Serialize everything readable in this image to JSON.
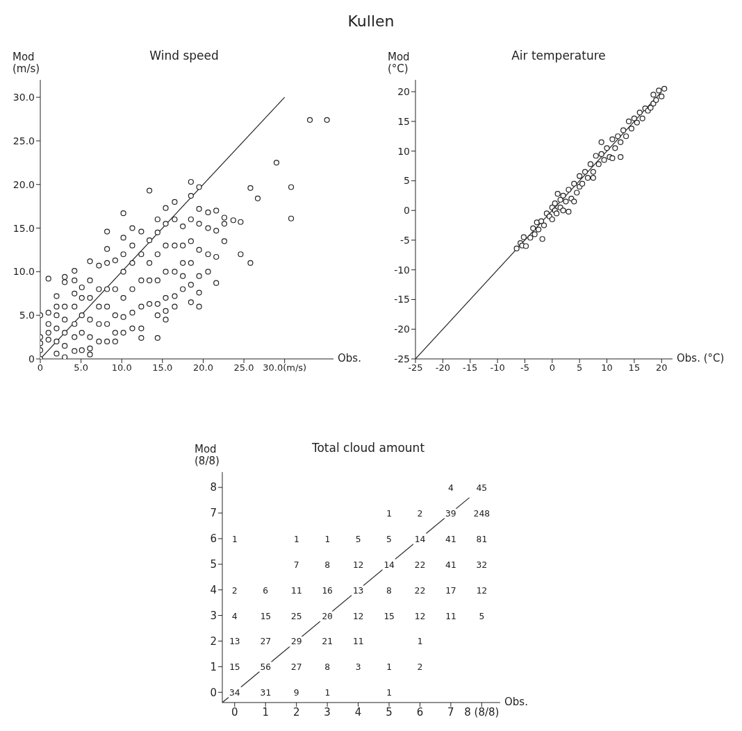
{
  "chart_data": [
    {
      "type": "scatter",
      "annotations": [
        "Kullen"
      ],
      "title": "Wind speed",
      "xlabel": "Obs.",
      "ylabel": "Mod (m/s)",
      "xlim": [
        0,
        36
      ],
      "xticks": [
        0,
        {
          "value": 5,
          "label": "5.0"
        },
        {
          "value": 10,
          "label": "10.0"
        },
        {
          "value": 15,
          "label": "15.0"
        },
        {
          "value": 20,
          "label": "20.0"
        },
        {
          "value": 25,
          "label": "25.0"
        },
        {
          "value": 30,
          "label": "30.0(m/s)"
        }
      ],
      "ylim": [
        0,
        32
      ],
      "yticks": [
        0,
        {
          "value": 5,
          "label": "5.0"
        },
        {
          "value": 10,
          "label": "10.0"
        },
        {
          "value": 15,
          "label": "15.0"
        },
        {
          "value": 20,
          "label": "20.0"
        },
        {
          "value": 25,
          "label": "25.0"
        },
        {
          "value": 30,
          "label": "30.0"
        }
      ],
      "series": [
        {
          "type": "scatter",
          "color": "#222222",
          "marker": "circle",
          "x": [
            0,
            0,
            0,
            0,
            0,
            1,
            1,
            1,
            1,
            1,
            2,
            2,
            2,
            2,
            2,
            2,
            3,
            3,
            3,
            3,
            3,
            3,
            3,
            4.2,
            4.2,
            4.2,
            4.2,
            4.2,
            4.2,
            4.2,
            5.1,
            5.1,
            5.1,
            5.1,
            5.1,
            6.1,
            6.1,
            6.1,
            6.1,
            6.1,
            6.1,
            6.1,
            7.2,
            7.2,
            7.2,
            7.2,
            7.2,
            8.2,
            8.2,
            8.2,
            8.2,
            8.2,
            8.2,
            8.2,
            9.2,
            9.2,
            9.2,
            9.2,
            9.2,
            10.2,
            10.2,
            10.2,
            10.2,
            10.2,
            10.2,
            10.2,
            11.3,
            11.3,
            11.3,
            11.3,
            11.3,
            11.3,
            12.4,
            12.4,
            12.4,
            12.4,
            12.4,
            12.4,
            13.4,
            13.4,
            13.4,
            13.4,
            13.4,
            14.4,
            14.4,
            14.4,
            14.4,
            14.4,
            14.4,
            14.4,
            15.4,
            15.4,
            15.4,
            15.4,
            15.4,
            15.4,
            15.4,
            16.5,
            16.5,
            16.5,
            16.5,
            16.5,
            16.5,
            17.5,
            17.5,
            17.5,
            17.5,
            17.5,
            18.5,
            18.5,
            18.5,
            18.5,
            18.5,
            18.5,
            18.5,
            19.5,
            19.5,
            19.5,
            19.5,
            19.5,
            19.5,
            19.5,
            20.6,
            20.6,
            20.6,
            20.6,
            21.6,
            21.6,
            21.6,
            21.6,
            22.6,
            22.6,
            22.6,
            23.7,
            24.6,
            24.6,
            25.8,
            25.8,
            26.7,
            29.0,
            30.8,
            30.8,
            33.1,
            35.2
          ],
          "values": [
            0,
            1,
            1.8,
            2.5,
            5,
            2.2,
            3.0,
            4.0,
            5.3,
            9.2,
            0.6,
            2,
            3.5,
            5,
            6,
            7.2,
            0.2,
            1.5,
            3,
            4.5,
            6.0,
            8.8,
            9.4,
            0.9,
            2.5,
            4,
            6,
            7.5,
            9.0,
            10.1,
            1,
            3,
            5,
            7,
            8.2,
            0.5,
            1.2,
            2.5,
            4.5,
            7,
            9,
            11.2,
            2,
            4,
            6,
            8,
            10.7,
            2,
            4,
            6,
            8,
            11,
            12.6,
            14.6,
            2,
            3,
            5,
            8,
            11.3,
            3,
            4.8,
            7,
            10,
            12,
            13.9,
            16.7,
            3.5,
            5.3,
            8,
            11,
            13,
            15,
            2.4,
            3.5,
            6,
            9,
            12,
            14.6,
            6.3,
            9,
            11,
            13.6,
            19.3,
            2.4,
            5,
            6.3,
            9,
            12,
            14.5,
            16,
            4.5,
            5.5,
            7,
            10,
            13,
            15.5,
            17.3,
            6,
            7.2,
            10,
            13,
            16,
            18,
            8,
            9.5,
            11,
            13,
            15.2,
            6.5,
            8.5,
            11,
            13.5,
            16,
            18.7,
            20.3,
            6,
            7.6,
            9.5,
            12.5,
            15.5,
            17.2,
            19.7,
            10,
            12,
            15,
            16.8,
            8.7,
            11.7,
            14.7,
            17,
            13.5,
            15.5,
            16.2,
            15.9,
            12,
            15.7,
            11,
            19.6,
            18.4,
            22.5,
            16.1,
            19.7,
            27.4,
            27.4
          ]
        },
        {
          "type": "line",
          "color": "#222222",
          "x": [
            0,
            30
          ],
          "values": [
            0,
            30
          ]
        }
      ]
    },
    {
      "type": "scatter",
      "title": "Air temperature",
      "xlabel": "Obs. (°C)",
      "ylabel": "Mod (°C)",
      "xlim": [
        -25,
        22
      ],
      "xticks": [
        -25,
        -20,
        -15,
        -10,
        -5,
        0,
        5,
        10,
        15,
        20
      ],
      "ylim": [
        -25,
        22
      ],
      "yticks": [
        -25,
        -20,
        -15,
        -10,
        -5,
        0,
        5,
        10,
        15,
        20
      ],
      "series": [
        {
          "type": "scatter",
          "color": "#222222",
          "marker": "circle",
          "x": [
            -6.5,
            -5.8,
            -5.5,
            -5.2,
            -4.8,
            -4.0,
            -3.5,
            -3.2,
            -2.8,
            -2.5,
            -2.0,
            -1.8,
            -1.5,
            -1.0,
            -0.5,
            0,
            0,
            0.5,
            0.5,
            0.8,
            1.0,
            1.5,
            1.5,
            2.0,
            2.0,
            2.5,
            3.0,
            3.0,
            3.5,
            4.0,
            4.0,
            4.5,
            5.0,
            5.0,
            5.5,
            6.0,
            6.5,
            7.0,
            7.5,
            7.5,
            8.0,
            8.5,
            9.0,
            9.0,
            9.5,
            10.0,
            10.5,
            11.0,
            11.5,
            11.0,
            12.0,
            12.5,
            12.5,
            13.0,
            13.5,
            14.0,
            14.5,
            15.0,
            15.5,
            16.0,
            16.5,
            17.0,
            17.5,
            18.0,
            18.5,
            18.5,
            19.0,
            19.5,
            20.0,
            20.5
          ],
          "values": [
            -6.4,
            -5.5,
            -5.9,
            -4.5,
            -6.0,
            -4.6,
            -3.0,
            -4.0,
            -2.0,
            -3.2,
            -1.8,
            -4.8,
            -2.5,
            -0.5,
            -1.0,
            -1.5,
            0.5,
            0.0,
            1.2,
            -0.5,
            2.8,
            0.5,
            1.8,
            2.5,
            0.0,
            1.5,
            3.5,
            -0.2,
            2.0,
            4.5,
            1.5,
            3.0,
            5.8,
            4.0,
            4.5,
            6.5,
            5.5,
            7.8,
            6.5,
            5.5,
            9.2,
            7.8,
            9.5,
            11.5,
            8.5,
            10.5,
            9.0,
            12.0,
            10.5,
            8.8,
            12.5,
            11.5,
            9.0,
            13.5,
            12.5,
            15.0,
            13.8,
            15.5,
            14.8,
            16.5,
            15.5,
            17.2,
            16.8,
            17.3,
            19.5,
            18.0,
            18.6,
            20.2,
            19.2,
            20.5
          ]
        },
        {
          "type": "line",
          "color": "#222222",
          "x": [
            -25,
            20
          ],
          "values": [
            -25,
            20
          ]
        }
      ]
    },
    {
      "type": "heatmap",
      "title": "Total cloud amount",
      "xlabel": "Obs.",
      "ylabel": "Mod (8/8)",
      "data_labels": true,
      "categories": [
        "0",
        "1",
        "2",
        "3",
        "4",
        "5",
        "6",
        "7",
        "8 (8/8)"
      ],
      "y_categories": [
        "8",
        "7",
        "6",
        "5",
        "4",
        "3",
        "2",
        "1",
        "0"
      ],
      "cells": [
        [
          null,
          null,
          null,
          null,
          null,
          null,
          null,
          4,
          45
        ],
        [
          null,
          null,
          null,
          null,
          null,
          1,
          2,
          39,
          248
        ],
        [
          1,
          null,
          1,
          1,
          5,
          5,
          14,
          41,
          81
        ],
        [
          null,
          null,
          7,
          8,
          12,
          14,
          22,
          41,
          32
        ],
        [
          2,
          6,
          11,
          16,
          13,
          8,
          22,
          17,
          12
        ],
        [
          4,
          15,
          25,
          20,
          12,
          15,
          12,
          11,
          5
        ],
        [
          13,
          27,
          29,
          21,
          11,
          null,
          1,
          null,
          null
        ],
        [
          15,
          56,
          27,
          8,
          3,
          1,
          2,
          null,
          null
        ],
        [
          34,
          31,
          9,
          1,
          null,
          1,
          null,
          null,
          null
        ]
      ]
    }
  ]
}
